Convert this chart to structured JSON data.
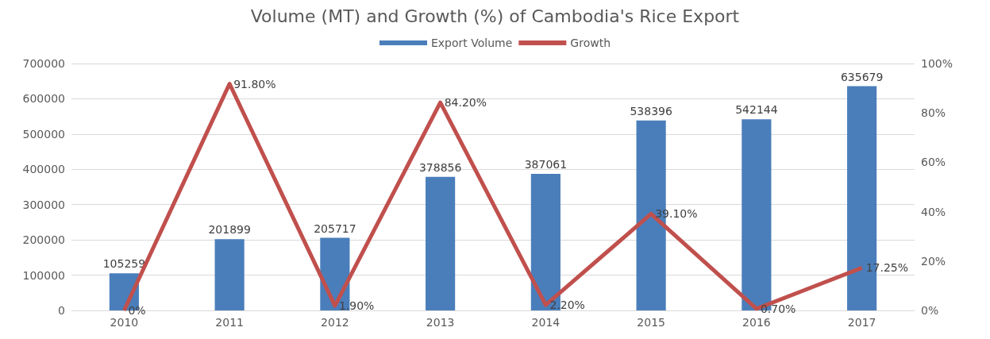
{
  "chart_data": {
    "type": "bar",
    "title": "Volume (MT) and Growth (%) of Cambodia's Rice Export",
    "categories": [
      "2010",
      "2011",
      "2012",
      "2013",
      "2014",
      "2015",
      "2016",
      "2017"
    ],
    "series": [
      {
        "name": "Export Volume",
        "color": "#4a7ebb",
        "values": [
          105259,
          201899,
          205717,
          378856,
          387061,
          538396,
          542144,
          635679
        ],
        "value_labels": [
          "105259",
          "201899",
          "205717",
          "378856",
          "387061",
          "538396",
          "542144",
          "635679"
        ]
      },
      {
        "name": "Growth",
        "type": "line",
        "axis": "y2",
        "color": "#c0504d",
        "marker": "none",
        "values": [
          0,
          91.8,
          1.9,
          84.2,
          2.2,
          39.1,
          0.7,
          17.25
        ],
        "value_labels": [
          "0%",
          "91.80%",
          "1.90%",
          "84.20%",
          "2.20%",
          "39.10%",
          "0.70%",
          "17.25%"
        ]
      }
    ],
    "ylim": [
      0,
      700000
    ],
    "yticks": [
      0,
      100000,
      200000,
      300000,
      400000,
      500000,
      600000,
      700000
    ],
    "y2lim": [
      0,
      100
    ],
    "y2ticks": [
      {
        "value": 0,
        "label": "0%"
      },
      {
        "value": 20,
        "label": "20%"
      },
      {
        "value": 40,
        "label": "40%"
      },
      {
        "value": 60,
        "label": "60%"
      },
      {
        "value": 80,
        "label": "80%"
      },
      {
        "value": 100,
        "label": "100%"
      }
    ],
    "grid": "y",
    "legend": "top"
  }
}
